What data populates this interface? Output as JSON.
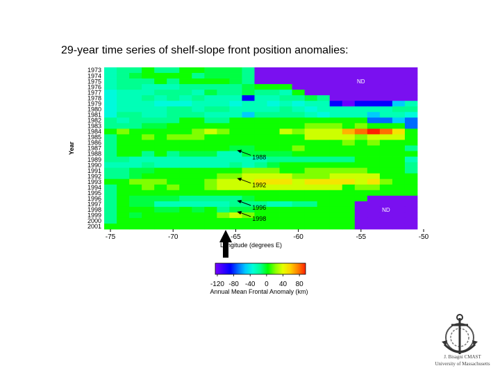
{
  "slide": {
    "title": "29-year time series of shelf-slope front position anomalies:"
  },
  "logo": {
    "line1": "J. Bisagni CMAST",
    "line2": "University of Massachusetts",
    "icon": "anchor-seal-icon"
  },
  "chart_data": {
    "type": "heatmap",
    "title": "",
    "xlabel": "Longitude (degrees E)",
    "ylabel": "Year",
    "xlim": [
      -75.5,
      -50.5
    ],
    "x_ticks": [
      -75,
      -70,
      -65,
      -60,
      -55,
      -50
    ],
    "x_tick_labels": [
      "-75",
      "-70",
      "-65",
      "-60",
      "-55",
      "-50"
    ],
    "years": [
      "1973",
      "1974",
      "1975",
      "1976",
      "1977",
      "1978",
      "1979",
      "1980",
      "1981",
      "1982",
      "1983",
      "1984",
      "1985",
      "1986",
      "1987",
      "1988",
      "1989",
      "1990",
      "1991",
      "1992",
      "1993",
      "1994",
      "1995",
      "1996",
      "1997",
      "1998",
      "1999",
      "2000",
      "2001"
    ],
    "lon_bins": [
      -75,
      -74,
      -73,
      -72,
      -71,
      -70,
      -69,
      -68,
      -67,
      -66,
      -65,
      -64,
      -63,
      -62,
      -61,
      -60,
      -59,
      -58,
      -57,
      -56,
      -55,
      -54,
      -53,
      -52,
      -51
    ],
    "anomaly_key": {
      "Z": -120,
      "B": -90,
      "b": -70,
      "c": -50,
      "t": -35,
      "u": -25,
      "g": -15,
      "G": -5,
      "h": 5,
      "l": 20,
      "y": 35,
      "Y": 50,
      "o": 65,
      "O": 80,
      "R": 95,
      "N": null
    },
    "anomaly_rows": [
      "ugghgghhGGGgNNNNNNNNNNNNN",
      "ugGhhhhgGGGgNNNNNNNNNNNNN",
      "uggghghhhhGgNNNNNNNNNNNNN",
      "ugguuugggggGhhhNNNNNNNNNN",
      "tuuuggguGggGgguhNNNNNNNNN",
      "tuuguguguuuBuuggGgNNNNNNN",
      "tuuutttuuutuututuuBZBBBcu",
      "tuuuuggugguuuugutuuuuuugg",
      "tgguuggguuucggggutuuucuut",
      "gugggghhgghhhhhhhhhhhbbcb",
      "gggGGhhhhhhhhhhhlllhlhhhb",
      "hlhhhhhlylhhhhylyyyoOROYh",
      "ghhlhlllhhhhhhhhyyyylyyyh",
      "ghhhhhhhhhhhhhhhhhhlhlhhh",
      "ghhhhhhhhhGGhhhlhhhhhhhhg",
      "ghhghgGGGuuGGGGhhhhhhhhhh",
      "gguuuuuuuuuuuggggggghhhhu",
      "uuuguuuuuugugGhhhhhhhhhhg",
      "ggGGhhhhhhhlllhhlllllhhhg",
      "ggGhhhhhhllyyyylllyyyyhhh",
      "hhlllhhhlyyyYYYyYYYYyYlhh",
      "ghhlhlhhlyyyyyyyyyyhllhhh",
      "ghhhhhhhhhhhhhhhhhhhhhhhh",
      "ghGGGGgggggGhhhhhhhhhNNNN",
      "ghGGuuuuuuggguugghhhNNNNN",
      "ghhhGGhGhgGGhhhhhhhhNNNNN",
      "ghGhhhhhhlylhhhhhhhhNNNNN",
      "ghhhhhhhhhhhhhhhhhhhNNNNN",
      "hhhhhhhhhhhhhhhhhhhhNNNNN"
    ],
    "region_labels": [
      {
        "text": "ND",
        "lon": -55,
        "year": "1975"
      },
      {
        "text": "ND",
        "lon": -53,
        "year": "1998"
      }
    ],
    "annotations": [
      {
        "text": "1988",
        "year": "1988",
        "point_lon": -64.9
      },
      {
        "text": "1992",
        "year": "1993",
        "point_lon": -64.9
      },
      {
        "text": "1996",
        "year": "1997",
        "point_lon": -64.9
      },
      {
        "text": "1998",
        "year": "1999",
        "point_lon": -64.9
      }
    ],
    "marker_arrow": {
      "lon": -65.8,
      "direction": "up"
    },
    "colorbar": {
      "label": "Annual Mean Frontal Anomaly (km)",
      "range": [
        -125,
        95
      ],
      "ticks": [
        -120,
        -80,
        -40,
        0,
        40,
        80
      ],
      "tick_labels": [
        "-120",
        "-80",
        "-40",
        "0",
        "40",
        "80"
      ],
      "colors": [
        "#7a00ff",
        "#3a00ff",
        "#0000ff",
        "#006bff",
        "#00c8ff",
        "#00ffd8",
        "#00ff90",
        "#00ff00",
        "#8cff00",
        "#e6ff00",
        "#ffd000",
        "#ff8000",
        "#ff2000"
      ]
    }
  }
}
